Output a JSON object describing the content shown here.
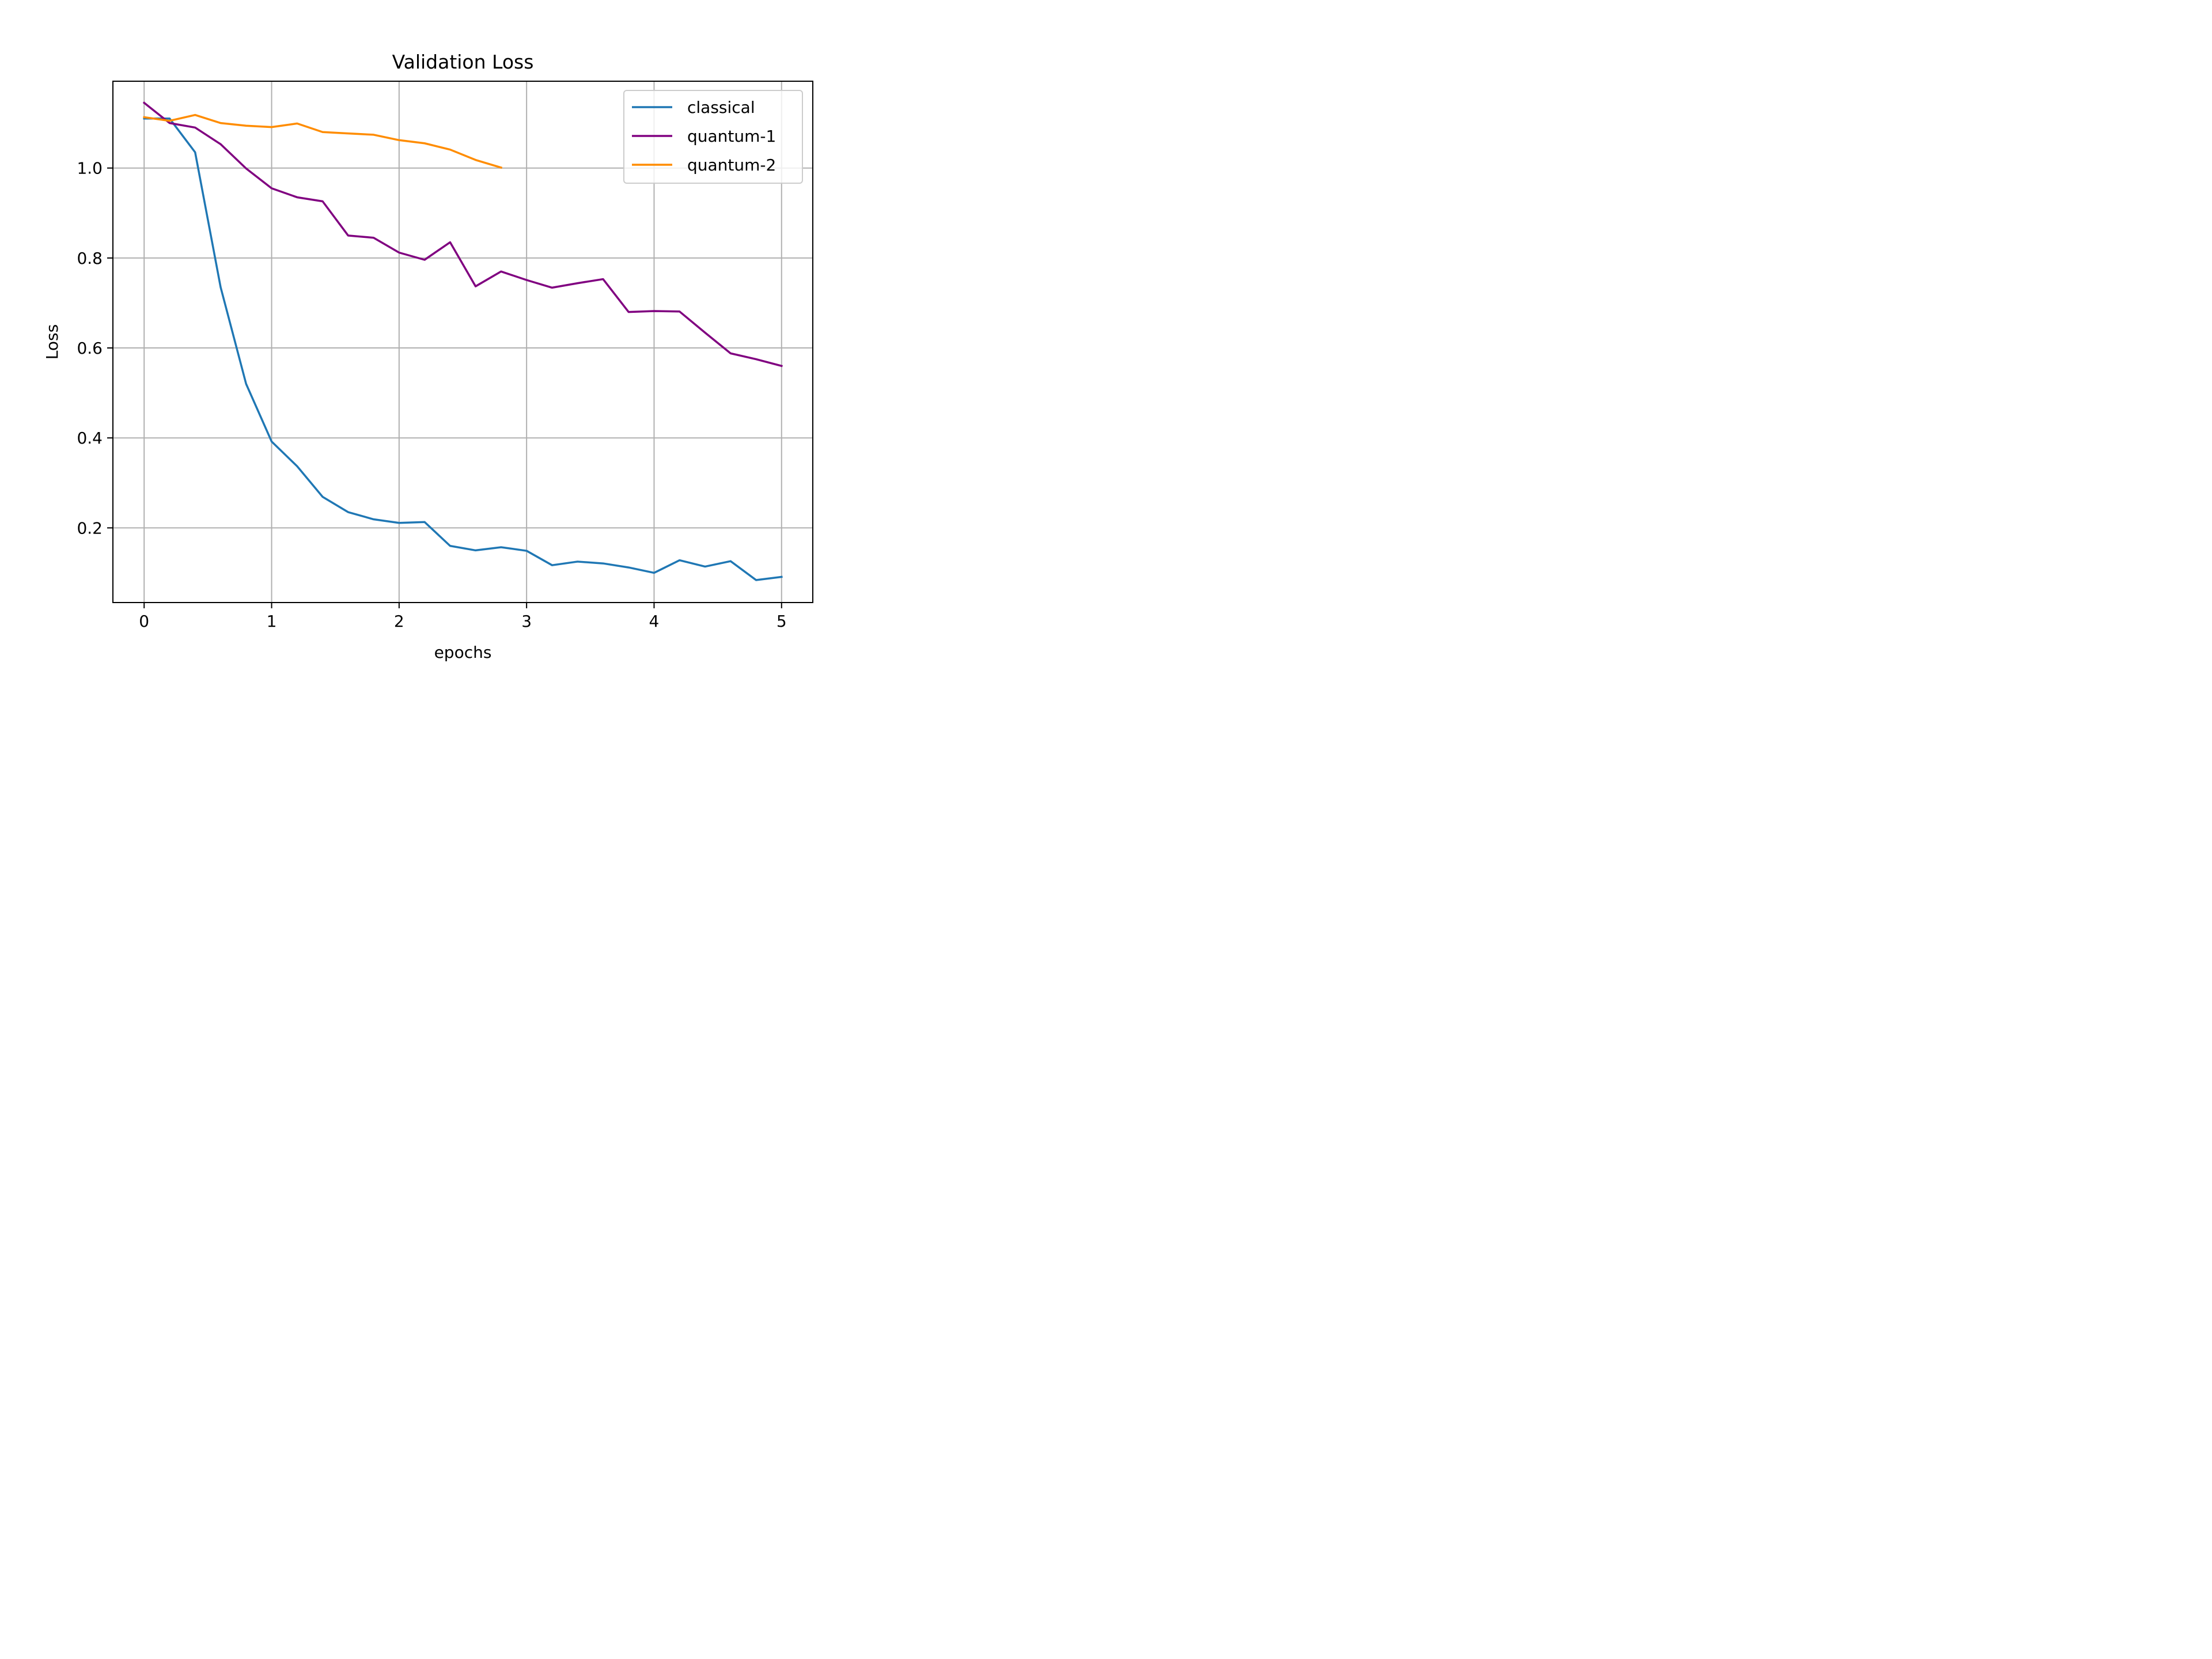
{
  "chart_data": {
    "type": "line",
    "title": "Validation Loss",
    "xlabel": "epochs",
    "ylabel": "Loss",
    "xlim": [
      -0.245,
      5.245
    ],
    "ylim": [
      0.034,
      1.193
    ],
    "xticks": [
      0,
      1,
      2,
      3,
      4,
      5
    ],
    "xtick_labels": [
      "0",
      "1",
      "2",
      "3",
      "4",
      "5"
    ],
    "yticks": [
      0.2,
      0.4,
      0.6,
      0.8,
      1.0
    ],
    "ytick_labels": [
      "0.2",
      "0.4",
      "0.6",
      "0.8",
      "1.0"
    ],
    "grid": true,
    "legend_position": "top-right",
    "series": [
      {
        "name": "classical",
        "color": "#1f77b4",
        "x": [
          0,
          0.2,
          0.4,
          0.6,
          0.8,
          1.0,
          1.2,
          1.4,
          1.6,
          1.8,
          2.0,
          2.2,
          2.4,
          2.6,
          2.8,
          3.0,
          3.2,
          3.4,
          3.6,
          3.8,
          4.0,
          4.2,
          4.4,
          4.6,
          4.8,
          5.0
        ],
        "y": [
          1.11,
          1.11,
          1.035,
          0.735,
          0.52,
          0.392,
          0.337,
          0.269,
          0.235,
          0.219,
          0.211,
          0.213,
          0.16,
          0.15,
          0.157,
          0.149,
          0.117,
          0.125,
          0.121,
          0.112,
          0.1,
          0.128,
          0.114,
          0.126,
          0.084,
          0.091
        ]
      },
      {
        "name": "quantum-1",
        "color": "#800080",
        "x": [
          0,
          0.2,
          0.4,
          0.6,
          0.8,
          1.0,
          1.2,
          1.4,
          1.6,
          1.8,
          2.0,
          2.2,
          2.4,
          2.6,
          2.8,
          3.0,
          3.2,
          3.4,
          3.6,
          3.8,
          4.0,
          4.2,
          4.4,
          4.6,
          4.8,
          5.0
        ],
        "y": [
          1.145,
          1.1,
          1.09,
          1.053,
          0.999,
          0.955,
          0.935,
          0.926,
          0.85,
          0.845,
          0.812,
          0.796,
          0.835,
          0.737,
          0.77,
          0.751,
          0.734,
          0.744,
          0.753,
          0.68,
          0.682,
          0.681,
          0.634,
          0.588,
          0.575,
          0.56
        ]
      },
      {
        "name": "quantum-2",
        "color": "#ff8c00",
        "x": [
          0,
          0.2,
          0.4,
          0.6,
          0.8,
          1.0,
          1.2,
          1.4,
          1.6,
          1.8,
          2.0,
          2.2,
          2.4,
          2.6,
          2.8
        ],
        "y": [
          1.113,
          1.105,
          1.118,
          1.1,
          1.094,
          1.091,
          1.099,
          1.08,
          1.077,
          1.074,
          1.062,
          1.055,
          1.041,
          1.018,
          1.001
        ]
      }
    ]
  }
}
